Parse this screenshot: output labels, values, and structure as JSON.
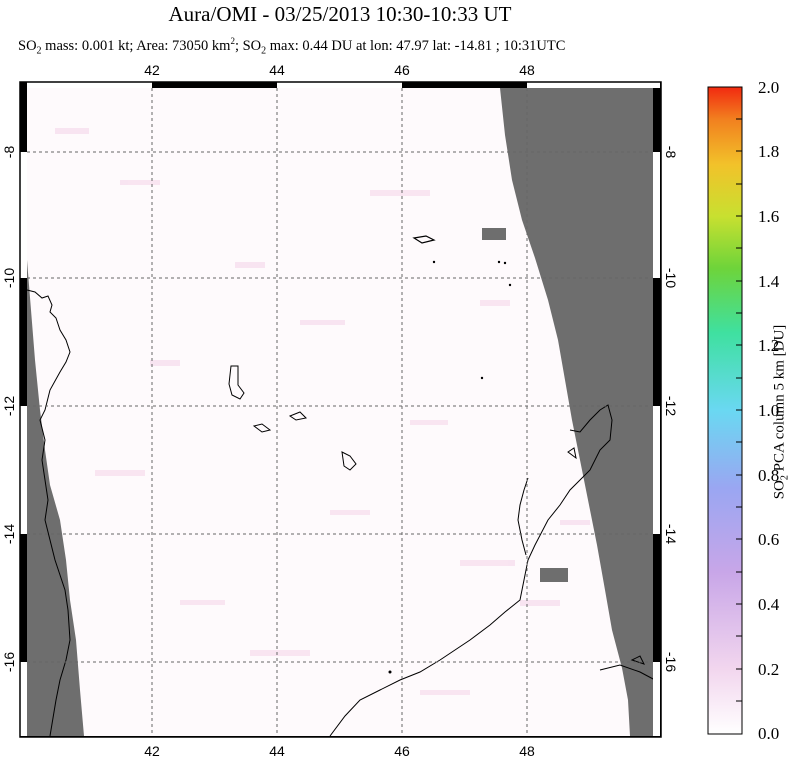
{
  "header": {
    "title": "Aura/OMI - 03/25/2013 10:30-10:33 UT",
    "so2_label": "SO",
    "so2_sub": "2",
    "mass_text": " mass: 0.001 kt; Area: 73050 km",
    "area_sup": "2",
    "so2_max_label": "; SO",
    "so2_max_sub": "2",
    "rest_text": " max: 0.44 DU at lon: 47.97 lat: -14.81 ; 10:31UTC"
  },
  "map": {
    "lon_range": [
      40.0,
      50.0
    ],
    "lat_range": [
      -17.0,
      -7.5
    ],
    "lon_ticks": [
      "42",
      "44",
      "46",
      "48"
    ],
    "lat_ticks": [
      "-8",
      "-10",
      "-12",
      "-14",
      "-16"
    ],
    "grid": "dotted",
    "colors": {
      "no_data": "#6e6e6e",
      "background": "#fefafc",
      "coast": "#000000"
    }
  },
  "colorbar": {
    "title_prefix": "SO",
    "title_sub": "2",
    "title_suffix": " PCA column 5 km [DU]",
    "ticks": [
      "0.0",
      "0.2",
      "0.4",
      "0.6",
      "0.8",
      "1.0",
      "1.2",
      "1.4",
      "1.6",
      "1.8",
      "2.0"
    ],
    "range": [
      0.0,
      2.0
    ]
  }
}
